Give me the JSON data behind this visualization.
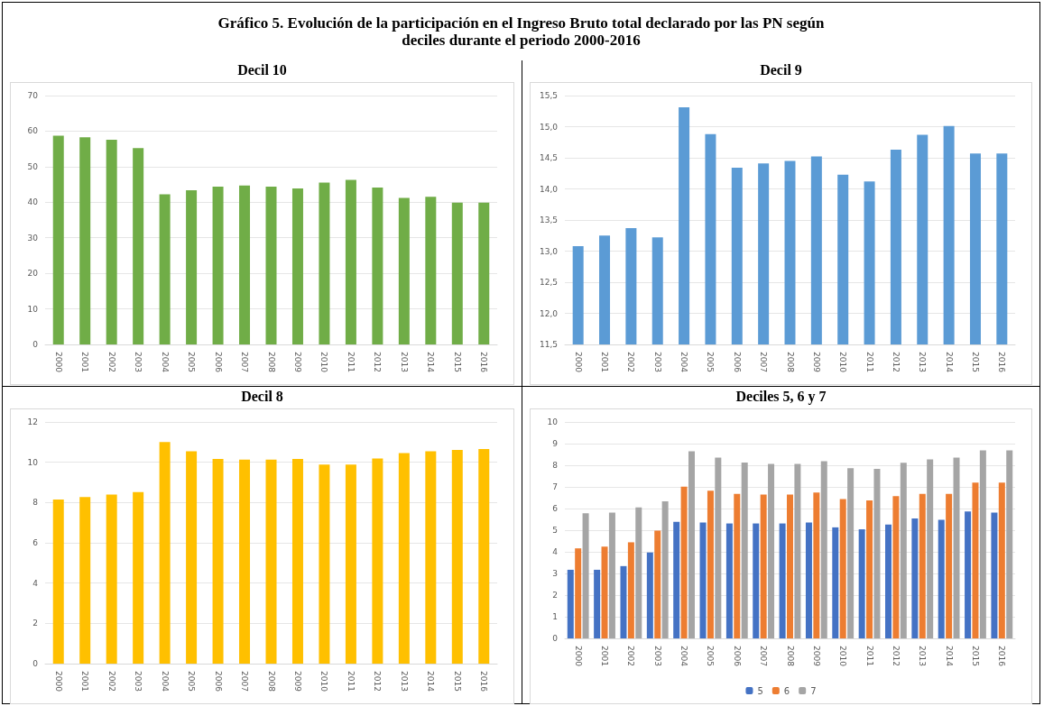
{
  "chart_data": [
    {
      "type": "other",
      "title": "Gráfico 5. Evolución de la participación en el Ingreso Bruto total declarado por las PN según deciles durante el periodo 2000-2016"
    },
    {
      "type": "bar",
      "title": "Decil 10",
      "categories": [
        "2000",
        "2001",
        "2002",
        "2003",
        "2004",
        "2005",
        "2006",
        "2007",
        "2008",
        "2009",
        "2010",
        "2011",
        "2012",
        "2013",
        "2014",
        "2015",
        "2016"
      ],
      "series": [
        {
          "color": "#70ad47",
          "values": [
            58.7,
            58.3,
            57.6,
            55.2,
            42.2,
            43.4,
            44.4,
            44.7,
            44.4,
            43.9,
            45.5,
            46.3,
            44.1,
            41.2,
            41.5,
            39.9,
            39.9
          ]
        }
      ],
      "ylim": [
        0,
        70
      ],
      "yticks": [
        0,
        10,
        20,
        30,
        40,
        50,
        60,
        70
      ],
      "grid": "y",
      "legend": false
    },
    {
      "type": "bar",
      "title": "Decil 9",
      "categories": [
        "2000",
        "2001",
        "2002",
        "2003",
        "2004",
        "2005",
        "2006",
        "2007",
        "2008",
        "2009",
        "2010",
        "2011",
        "2012",
        "2013",
        "2014",
        "2015",
        "2016"
      ],
      "series": [
        {
          "color": "#5b9bd5",
          "values": [
            13.08,
            13.25,
            13.37,
            13.22,
            15.31,
            14.88,
            14.34,
            14.41,
            14.45,
            14.52,
            14.23,
            14.12,
            14.63,
            14.87,
            15.01,
            14.57,
            14.57
          ]
        }
      ],
      "ylim": [
        11.5,
        15.5
      ],
      "yticks": [
        {
          "value": 11.5,
          "label": "11,5"
        },
        {
          "value": 12,
          "label": "12,0"
        },
        {
          "value": 12.5,
          "label": "12,5"
        },
        {
          "value": 13,
          "label": "13,0"
        },
        {
          "value": 13.5,
          "label": "13,5"
        },
        {
          "value": 14,
          "label": "14,0"
        },
        {
          "value": 14.5,
          "label": "14,5"
        },
        {
          "value": 15,
          "label": "15,0"
        },
        {
          "value": 15.5,
          "label": "15,5"
        }
      ],
      "grid": "y",
      "legend": false
    },
    {
      "type": "bar",
      "title": "Decil 8",
      "categories": [
        "2000",
        "2001",
        "2002",
        "2003",
        "2004",
        "2005",
        "2006",
        "2007",
        "2008",
        "2009",
        "2010",
        "2011",
        "2012",
        "2013",
        "2014",
        "2015",
        "2016"
      ],
      "series": [
        {
          "color": "#ffc000",
          "values": [
            8.15,
            8.27,
            8.4,
            8.52,
            11.0,
            10.54,
            10.16,
            10.13,
            10.13,
            10.16,
            9.88,
            9.88,
            10.19,
            10.46,
            10.54,
            10.61,
            10.66
          ]
        }
      ],
      "ylim": [
        0,
        12
      ],
      "yticks": [
        0,
        2,
        4,
        6,
        8,
        10,
        12
      ],
      "grid": "y",
      "legend": false
    },
    {
      "type": "bar",
      "title": "Deciles 5, 6 y 7",
      "categories": [
        "2000",
        "2001",
        "2002",
        "2003",
        "2004",
        "2005",
        "2006",
        "2007",
        "2008",
        "2009",
        "2010",
        "2011",
        "2012",
        "2013",
        "2014",
        "2015",
        "2016"
      ],
      "series": [
        {
          "name": "5",
          "color": "#4472c4",
          "values": [
            3.17,
            3.17,
            3.34,
            3.97,
            5.39,
            5.35,
            5.31,
            5.31,
            5.31,
            5.35,
            5.13,
            5.04,
            5.26,
            5.54,
            5.48,
            5.86,
            5.81
          ]
        },
        {
          "name": "6",
          "color": "#ed7d31",
          "values": [
            4.16,
            4.24,
            4.44,
            4.98,
            7.01,
            6.82,
            6.68,
            6.65,
            6.65,
            6.74,
            6.44,
            6.38,
            6.57,
            6.68,
            6.68,
            7.2,
            7.2
          ]
        },
        {
          "name": "7",
          "color": "#a5a5a5",
          "values": [
            5.78,
            5.81,
            6.05,
            6.33,
            8.65,
            8.35,
            8.13,
            8.06,
            8.06,
            8.19,
            7.86,
            7.83,
            8.11,
            8.27,
            8.35,
            8.69,
            8.69
          ]
        }
      ],
      "ylim": [
        0,
        10
      ],
      "yticks": [
        0,
        1,
        2,
        3,
        4,
        5,
        6,
        7,
        8,
        9,
        10
      ],
      "grid": "y",
      "legend": "bottom"
    }
  ]
}
